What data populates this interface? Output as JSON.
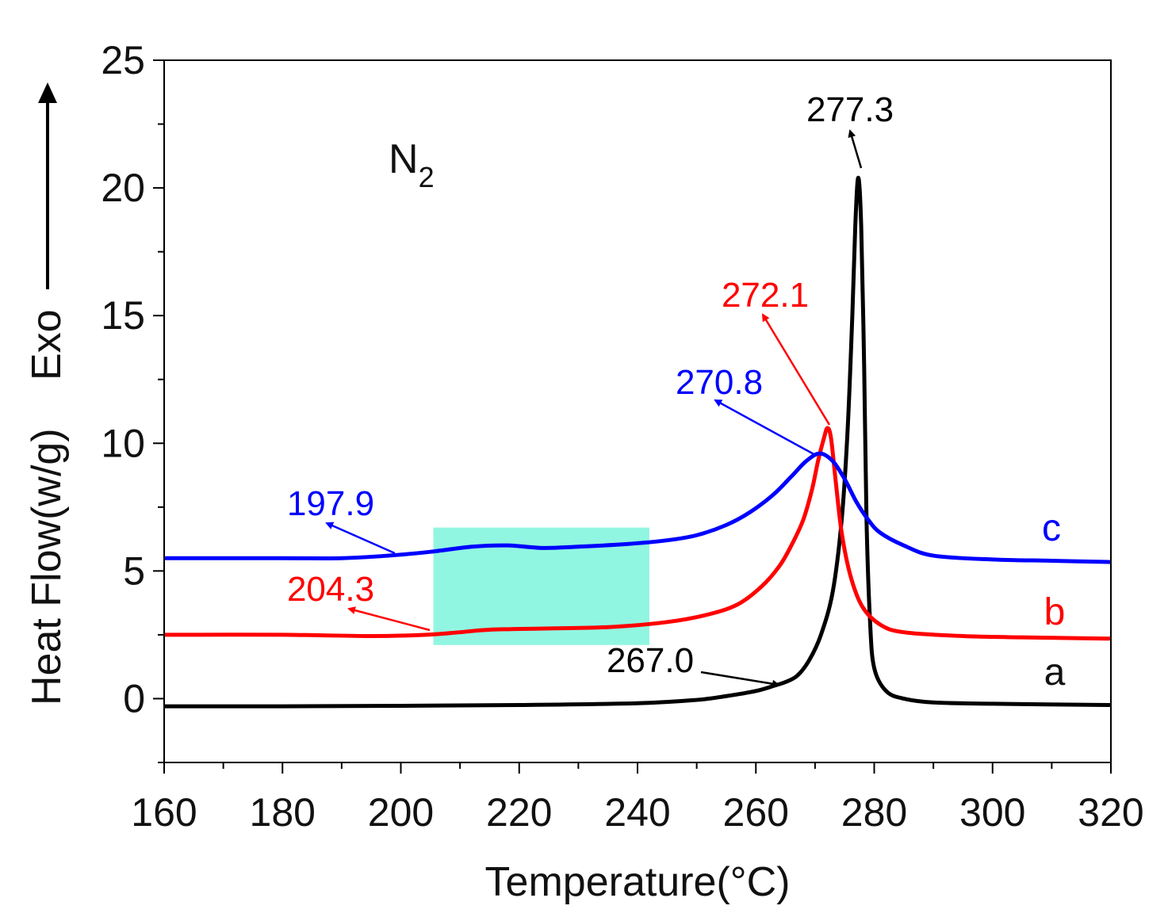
{
  "chart_data": {
    "type": "line",
    "title": "",
    "xlabel": "Temperature(°C)",
    "ylabel": "Heat Flow(w/g)",
    "ylabel_exo": "Exo",
    "atmosphere": "N",
    "atmosphere_subscript": "2",
    "xlim": [
      160,
      320
    ],
    "ylim": [
      -2.5,
      25
    ],
    "x_ticks": [
      "160",
      "180",
      "200",
      "220",
      "240",
      "260",
      "280",
      "300",
      "320"
    ],
    "y_ticks": [
      "0",
      "5",
      "10",
      "15",
      "20",
      "25"
    ],
    "grid": false,
    "highlight_region": {
      "x": [
        205.5,
        242
      ],
      "y": [
        2.1,
        6.7
      ],
      "color": "#7ef5dc"
    },
    "series": [
      {
        "name": "a",
        "color": "#000000",
        "points": [
          [
            160,
            -0.3
          ],
          [
            180,
            -0.3
          ],
          [
            200,
            -0.28
          ],
          [
            220,
            -0.25
          ],
          [
            240,
            -0.18
          ],
          [
            250,
            -0.05
          ],
          [
            255,
            0.1
          ],
          [
            260,
            0.3
          ],
          [
            263,
            0.5
          ],
          [
            265,
            0.65
          ],
          [
            267,
            0.9
          ],
          [
            269,
            1.5
          ],
          [
            271,
            2.5
          ],
          [
            273,
            4.2
          ],
          [
            274.5,
            7
          ],
          [
            275.5,
            10.5
          ],
          [
            276.3,
            15
          ],
          [
            276.8,
            18.5
          ],
          [
            277.3,
            20.4
          ],
          [
            277.8,
            18.5
          ],
          [
            278.3,
            13
          ],
          [
            278.7,
            7
          ],
          [
            279.3,
            3
          ],
          [
            280,
            1.2
          ],
          [
            282,
            0.3
          ],
          [
            285,
            0
          ],
          [
            290,
            -0.15
          ],
          [
            300,
            -0.2
          ],
          [
            320,
            -0.25
          ]
        ]
      },
      {
        "name": "b",
        "color": "#ff0000",
        "points": [
          [
            160,
            2.5
          ],
          [
            180,
            2.5
          ],
          [
            195,
            2.45
          ],
          [
            204.3,
            2.5
          ],
          [
            210,
            2.6
          ],
          [
            215,
            2.7
          ],
          [
            225,
            2.75
          ],
          [
            235,
            2.8
          ],
          [
            245,
            3
          ],
          [
            252,
            3.3
          ],
          [
            257,
            3.7
          ],
          [
            261,
            4.4
          ],
          [
            264,
            5.2
          ],
          [
            266,
            6
          ],
          [
            268,
            7
          ],
          [
            269.5,
            8.2
          ],
          [
            270.5,
            9.3
          ],
          [
            271.5,
            10.2
          ],
          [
            272.1,
            10.6
          ],
          [
            272.7,
            10.2
          ],
          [
            273.5,
            8.5
          ],
          [
            274.5,
            6.5
          ],
          [
            276,
            4.8
          ],
          [
            278,
            3.6
          ],
          [
            281,
            2.9
          ],
          [
            285,
            2.6
          ],
          [
            295,
            2.45
          ],
          [
            305,
            2.4
          ],
          [
            320,
            2.35
          ]
        ]
      },
      {
        "name": "c",
        "color": "#0000ff",
        "points": [
          [
            160,
            5.5
          ],
          [
            180,
            5.5
          ],
          [
            190,
            5.5
          ],
          [
            197.9,
            5.6
          ],
          [
            205,
            5.75
          ],
          [
            212,
            5.95
          ],
          [
            218,
            6
          ],
          [
            224,
            5.9
          ],
          [
            230,
            5.95
          ],
          [
            238,
            6.05
          ],
          [
            245,
            6.2
          ],
          [
            250,
            6.4
          ],
          [
            255,
            6.8
          ],
          [
            259,
            7.3
          ],
          [
            263,
            8
          ],
          [
            266,
            8.7
          ],
          [
            268.5,
            9.3
          ],
          [
            270.8,
            9.6
          ],
          [
            273,
            9.3
          ],
          [
            275,
            8.6
          ],
          [
            277,
            7.7
          ],
          [
            279,
            7
          ],
          [
            281,
            6.5
          ],
          [
            285,
            6
          ],
          [
            290,
            5.6
          ],
          [
            300,
            5.45
          ],
          [
            310,
            5.4
          ],
          [
            320,
            5.35
          ]
        ]
      }
    ],
    "annotations": [
      {
        "text": "277.3",
        "color": "#000000",
        "x": 277.3,
        "y": 20.4
      },
      {
        "text": "272.1",
        "color": "#ff0000",
        "x": 272.1,
        "y": 10.6
      },
      {
        "text": "270.8",
        "color": "#0000ff",
        "x": 270.8,
        "y": 9.6
      },
      {
        "text": "197.9",
        "color": "#0000ff",
        "x": 197.9,
        "y": 5.6
      },
      {
        "text": "204.3",
        "color": "#ff0000",
        "x": 204.3,
        "y": 2.5
      },
      {
        "text": "267.0",
        "color": "#000000",
        "x": 267.0,
        "y": 0.9
      }
    ]
  }
}
